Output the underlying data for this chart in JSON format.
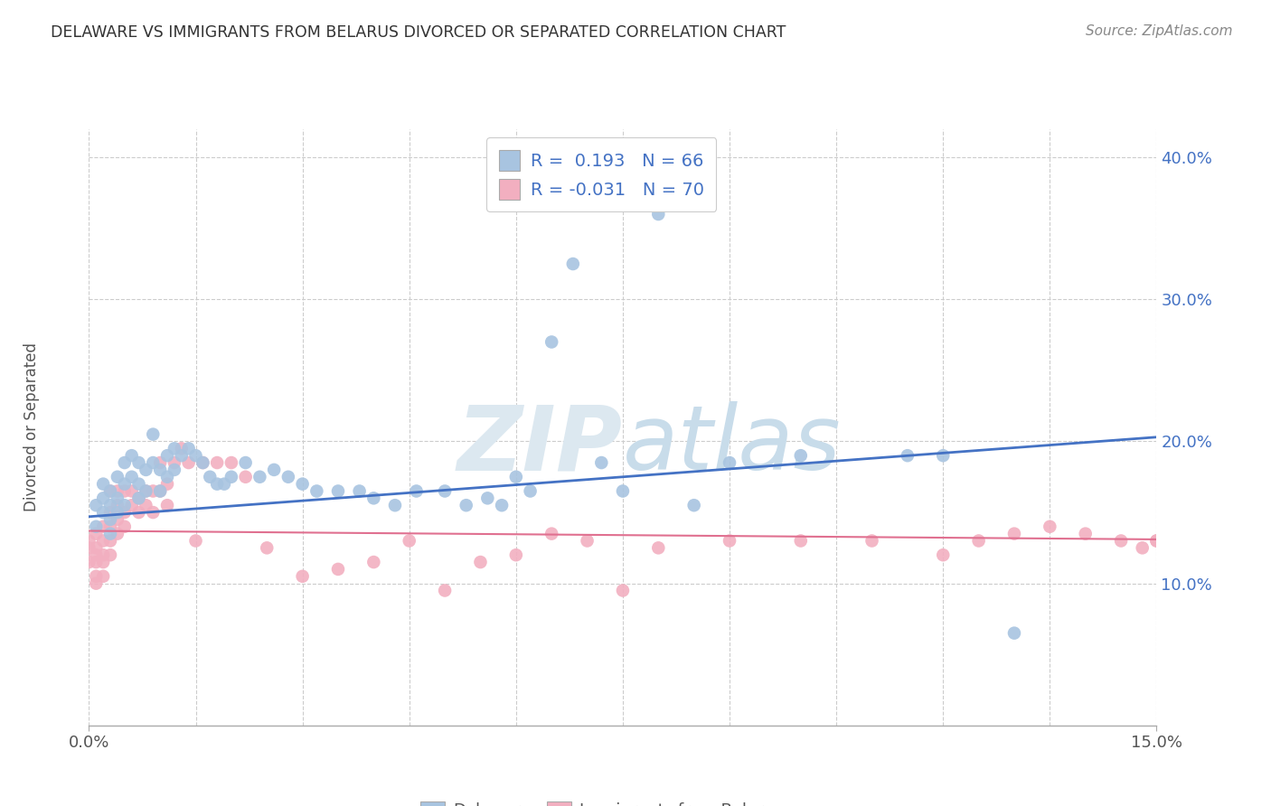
{
  "title": "DELAWARE VS IMMIGRANTS FROM BELARUS DIVORCED OR SEPARATED CORRELATION CHART",
  "source": "Source: ZipAtlas.com",
  "ylabel": "Divorced or Separated",
  "xlim": [
    0.0,
    0.15
  ],
  "ylim": [
    0.0,
    0.42
  ],
  "ytick_vals": [
    0.1,
    0.2,
    0.3,
    0.4
  ],
  "ytick_labels": [
    "10.0%",
    "20.0%",
    "30.0%",
    "40.0%"
  ],
  "xtick_vals": [
    0.0,
    0.15
  ],
  "xtick_labels": [
    "0.0%",
    "15.0%"
  ],
  "blue_R": 0.193,
  "blue_N": 66,
  "pink_R": -0.031,
  "pink_N": 70,
  "blue_color": "#a8c4e0",
  "pink_color": "#f2afc0",
  "blue_line_color": "#4472c4",
  "pink_line_color": "#e07090",
  "legend_label_blue": "Delaware",
  "legend_label_pink": "Immigrants from Belarus",
  "blue_scatter_x": [
    0.001,
    0.001,
    0.002,
    0.002,
    0.002,
    0.003,
    0.003,
    0.003,
    0.003,
    0.004,
    0.004,
    0.004,
    0.005,
    0.005,
    0.005,
    0.006,
    0.006,
    0.007,
    0.007,
    0.007,
    0.008,
    0.008,
    0.009,
    0.009,
    0.01,
    0.01,
    0.011,
    0.011,
    0.012,
    0.012,
    0.013,
    0.014,
    0.015,
    0.016,
    0.017,
    0.018,
    0.019,
    0.02,
    0.022,
    0.024,
    0.026,
    0.028,
    0.03,
    0.032,
    0.035,
    0.038,
    0.04,
    0.043,
    0.046,
    0.05,
    0.053,
    0.056,
    0.058,
    0.06,
    0.062,
    0.065,
    0.068,
    0.072,
    0.075,
    0.08,
    0.085,
    0.09,
    0.1,
    0.115,
    0.12,
    0.13
  ],
  "blue_scatter_y": [
    0.155,
    0.14,
    0.17,
    0.16,
    0.15,
    0.165,
    0.155,
    0.145,
    0.135,
    0.175,
    0.16,
    0.15,
    0.185,
    0.17,
    0.155,
    0.19,
    0.175,
    0.185,
    0.17,
    0.16,
    0.18,
    0.165,
    0.205,
    0.185,
    0.18,
    0.165,
    0.19,
    0.175,
    0.195,
    0.18,
    0.19,
    0.195,
    0.19,
    0.185,
    0.175,
    0.17,
    0.17,
    0.175,
    0.185,
    0.175,
    0.18,
    0.175,
    0.17,
    0.165,
    0.165,
    0.165,
    0.16,
    0.155,
    0.165,
    0.165,
    0.155,
    0.16,
    0.155,
    0.175,
    0.165,
    0.27,
    0.325,
    0.185,
    0.165,
    0.36,
    0.155,
    0.185,
    0.19,
    0.19,
    0.19,
    0.065
  ],
  "pink_scatter_x": [
    0.0,
    0.0,
    0.0,
    0.001,
    0.001,
    0.001,
    0.001,
    0.001,
    0.001,
    0.002,
    0.002,
    0.002,
    0.002,
    0.002,
    0.003,
    0.003,
    0.003,
    0.003,
    0.003,
    0.004,
    0.004,
    0.004,
    0.004,
    0.005,
    0.005,
    0.005,
    0.006,
    0.006,
    0.007,
    0.007,
    0.008,
    0.008,
    0.009,
    0.009,
    0.01,
    0.01,
    0.011,
    0.011,
    0.012,
    0.013,
    0.014,
    0.015,
    0.016,
    0.018,
    0.02,
    0.022,
    0.025,
    0.03,
    0.035,
    0.04,
    0.045,
    0.05,
    0.055,
    0.06,
    0.065,
    0.07,
    0.075,
    0.08,
    0.09,
    0.1,
    0.11,
    0.12,
    0.125,
    0.13,
    0.135,
    0.14,
    0.145,
    0.148,
    0.15,
    0.15
  ],
  "pink_scatter_y": [
    0.115,
    0.125,
    0.13,
    0.135,
    0.125,
    0.12,
    0.115,
    0.105,
    0.1,
    0.14,
    0.13,
    0.12,
    0.115,
    0.105,
    0.165,
    0.15,
    0.14,
    0.13,
    0.12,
    0.165,
    0.155,
    0.145,
    0.135,
    0.165,
    0.15,
    0.14,
    0.165,
    0.155,
    0.16,
    0.15,
    0.165,
    0.155,
    0.165,
    0.15,
    0.185,
    0.165,
    0.17,
    0.155,
    0.185,
    0.195,
    0.185,
    0.13,
    0.185,
    0.185,
    0.185,
    0.175,
    0.125,
    0.105,
    0.11,
    0.115,
    0.13,
    0.095,
    0.115,
    0.12,
    0.135,
    0.13,
    0.095,
    0.125,
    0.13,
    0.13,
    0.13,
    0.12,
    0.13,
    0.135,
    0.14,
    0.135,
    0.13,
    0.125,
    0.13,
    0.13
  ],
  "blue_trend_x0": 0.0,
  "blue_trend_y0": 0.147,
  "blue_trend_x1": 0.15,
  "blue_trend_y1": 0.203,
  "pink_trend_x0": 0.0,
  "pink_trend_y0": 0.137,
  "pink_trend_x1": 0.15,
  "pink_trend_y1": 0.131
}
